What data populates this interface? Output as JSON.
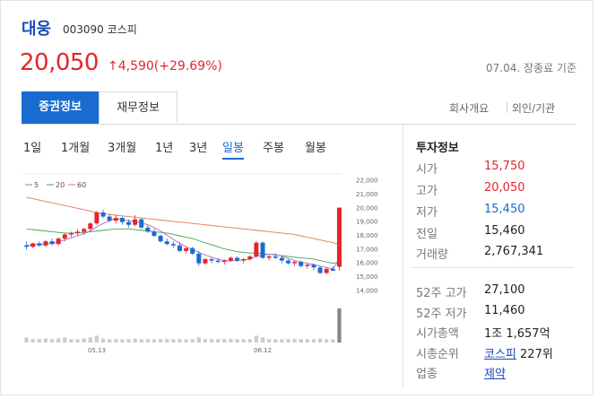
{
  "stock": {
    "name": "대웅",
    "code": "003090",
    "market": "코스피",
    "price": "20,050",
    "change": "↑4,590(+29.69%)",
    "date_status": "07.04. 장종료 기준"
  },
  "tabs": {
    "active": "증권정보",
    "second": "재무정보",
    "right1": "회사개요",
    "right2": "외인/기관"
  },
  "periods": [
    "1일",
    "1개월",
    "3개월",
    "1년",
    "3년",
    "일봉",
    "주봉",
    "월봉"
  ],
  "active_period": "일봉",
  "info": {
    "title": "투자정보",
    "rows": [
      {
        "label": "시가",
        "value": "15,750",
        "color": "#e4262b"
      },
      {
        "label": "고가",
        "value": "20,050",
        "color": "#e4262b"
      },
      {
        "label": "저가",
        "value": "15,450",
        "color": "#1a6bd0"
      },
      {
        "label": "전일",
        "value": "15,460",
        "color": "#222222"
      },
      {
        "label": "거래량",
        "value": "2,767,341",
        "color": "#222222"
      },
      {
        "label": "52주 고가",
        "value": "27,100",
        "color": "#222222"
      },
      {
        "label": "52주 저가",
        "value": "11,460",
        "color": "#222222"
      },
      {
        "label": "시가총액",
        "value": "1조 1,657억",
        "color": "#222222"
      },
      {
        "label": "시총순위",
        "value_link": "코스피",
        "value_rest": "227위",
        "color": "#222222"
      },
      {
        "label": "업종",
        "value_link": "제약",
        "color": "#222222"
      }
    ]
  },
  "chart_data": {
    "type": "candlestick",
    "ma_legend": [
      "5",
      "20",
      "60"
    ],
    "ma_colors": [
      "#b266d6",
      "#3aa84a",
      "#e07a56"
    ],
    "yticks": [
      "22,000",
      "21,000",
      "20,000",
      "19,000",
      "18,000",
      "17,000",
      "16,000",
      "15,000",
      "14,000"
    ],
    "ylim": [
      13500,
      22500
    ],
    "xticks": [
      "05.13",
      "06.12"
    ],
    "candles": [
      [
        17300,
        17600,
        17000,
        17200
      ],
      [
        17200,
        17500,
        17100,
        17450
      ],
      [
        17450,
        17600,
        17200,
        17300
      ],
      [
        17300,
        17700,
        17200,
        17600
      ],
      [
        17600,
        17800,
        17300,
        17400
      ],
      [
        17400,
        17900,
        17300,
        17800
      ],
      [
        17800,
        18200,
        17600,
        18100
      ],
      [
        18100,
        18300,
        17900,
        18200
      ],
      [
        18200,
        18500,
        18000,
        18300
      ],
      [
        18300,
        18600,
        18100,
        18500
      ],
      [
        18500,
        19000,
        18300,
        18900
      ],
      [
        18900,
        19800,
        18800,
        19700
      ],
      [
        19700,
        19900,
        19300,
        19400
      ],
      [
        19400,
        19600,
        19000,
        19100
      ],
      [
        19100,
        19500,
        18900,
        19300
      ],
      [
        19300,
        19400,
        18800,
        19000
      ],
      [
        19000,
        19200,
        18600,
        18800
      ],
      [
        18800,
        19500,
        18700,
        19200
      ],
      [
        19200,
        19300,
        18500,
        18600
      ],
      [
        18600,
        18800,
        18200,
        18300
      ],
      [
        18300,
        18500,
        17900,
        18000
      ],
      [
        18000,
        18100,
        17500,
        17600
      ],
      [
        17600,
        17800,
        17300,
        17400
      ],
      [
        17400,
        17600,
        17100,
        17300
      ],
      [
        17300,
        17500,
        16800,
        16900
      ],
      [
        16900,
        17200,
        16700,
        17100
      ],
      [
        17100,
        17200,
        16600,
        16700
      ],
      [
        16700,
        16900,
        15800,
        16000
      ],
      [
        16000,
        16400,
        15900,
        16300
      ],
      [
        16300,
        16400,
        16000,
        16200
      ],
      [
        16200,
        16400,
        16000,
        16100
      ],
      [
        16100,
        16300,
        15900,
        16200
      ],
      [
        16200,
        16500,
        16100,
        16400
      ],
      [
        16400,
        16500,
        16100,
        16200
      ],
      [
        16200,
        16400,
        16000,
        16300
      ],
      [
        16300,
        16600,
        16200,
        16500
      ],
      [
        16500,
        17600,
        16400,
        17500
      ],
      [
        17500,
        17600,
        16300,
        16400
      ],
      [
        16400,
        16600,
        16200,
        16500
      ],
      [
        16500,
        16700,
        16300,
        16400
      ],
      [
        16400,
        16500,
        16000,
        16200
      ],
      [
        16200,
        16300,
        15900,
        16000
      ],
      [
        16000,
        16200,
        15800,
        16100
      ],
      [
        16100,
        16200,
        15700,
        15800
      ],
      [
        15800,
        16000,
        15600,
        15900
      ],
      [
        15900,
        16000,
        15500,
        15700
      ],
      [
        15700,
        15800,
        15200,
        15300
      ],
      [
        15300,
        15700,
        15200,
        15600
      ],
      [
        15600,
        15800,
        15450,
        15460
      ],
      [
        15750,
        20050,
        15450,
        20050
      ]
    ],
    "ma5": [
      17300,
      17350,
      17380,
      17400,
      17450,
      17550,
      17700,
      17850,
      18000,
      18150,
      18350,
      18650,
      18900,
      19100,
      19250,
      19200,
      19100,
      19050,
      18950,
      18800,
      18600,
      18350,
      18050,
      17750,
      17450,
      17200,
      17000,
      16800,
      16600,
      16450,
      16300,
      16200,
      16180,
      16200,
      16250,
      16300,
      16500,
      16600,
      16650,
      16650,
      16500,
      16350,
      16200,
      16100,
      16000,
      15900,
      15800,
      15700,
      15600,
      16300
    ],
    "ma20": [
      18500,
      18450,
      18400,
      18350,
      18300,
      18250,
      18200,
      18200,
      18200,
      18250,
      18300,
      18350,
      18400,
      18450,
      18500,
      18500,
      18500,
      18450,
      18400,
      18350,
      18300,
      18250,
      18200,
      18100,
      18000,
      17900,
      17800,
      17650,
      17500,
      17350,
      17200,
      17050,
      16950,
      16850,
      16800,
      16750,
      16750,
      16700,
      16650,
      16600,
      16550,
      16500,
      16450,
      16400,
      16350,
      16300,
      16200,
      16100,
      16000,
      16100
    ],
    "ma60": [
      20800,
      20700,
      20600,
      20500,
      20400,
      20300,
      20200,
      20100,
      20000,
      19900,
      19800,
      19700,
      19600,
      19550,
      19500,
      19450,
      19400,
      19350,
      19300,
      19250,
      19200,
      19150,
      19100,
      19050,
      19000,
      18950,
      18900,
      18850,
      18800,
      18750,
      18700,
      18650,
      18600,
      18550,
      18500,
      18450,
      18400,
      18350,
      18300,
      18250,
      18200,
      18150,
      18100,
      18000,
      17900,
      17800,
      17700,
      17600,
      17500,
      17400
    ],
    "volume": [
      0.15,
      0.1,
      0.1,
      0.12,
      0.1,
      0.12,
      0.15,
      0.1,
      0.1,
      0.12,
      0.15,
      0.2,
      0.12,
      0.1,
      0.1,
      0.1,
      0.1,
      0.12,
      0.1,
      0.1,
      0.1,
      0.1,
      0.1,
      0.1,
      0.1,
      0.1,
      0.1,
      0.15,
      0.1,
      0.1,
      0.1,
      0.1,
      0.1,
      0.1,
      0.1,
      0.1,
      0.2,
      0.15,
      0.1,
      0.1,
      0.1,
      0.1,
      0.1,
      0.1,
      0.1,
      0.1,
      0.12,
      0.1,
      0.1,
      1.0
    ]
  }
}
